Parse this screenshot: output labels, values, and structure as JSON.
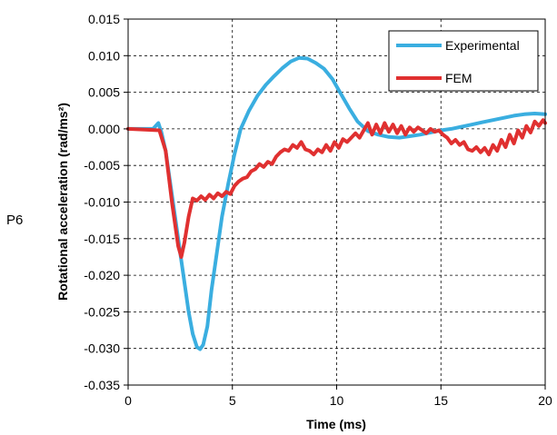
{
  "side_label": "P6",
  "chart_data": {
    "type": "line",
    "xlabel": "Time (ms)",
    "ylabel": "Rotational acceleration (rad/ms²)",
    "xlim": [
      0,
      20
    ],
    "ylim": [
      -0.035,
      0.015
    ],
    "xticks": [
      0,
      5,
      10,
      15,
      20
    ],
    "yticks": [
      -0.035,
      -0.03,
      -0.025,
      -0.02,
      -0.015,
      -0.01,
      -0.005,
      0.0,
      0.005,
      0.01,
      0.015
    ],
    "xtick_labels": [
      "0",
      "5",
      "10",
      "15",
      "20"
    ],
    "ytick_labels": [
      "-0.035",
      "-0.030",
      "-0.025",
      "-0.020",
      "-0.015",
      "-0.010",
      "-0.005",
      "0.000",
      "0.005",
      "0.010",
      "0.015"
    ],
    "grid": true,
    "legend": "top-right",
    "series": [
      {
        "name": "Experimental",
        "color": "#3aaee0",
        "x": [
          0,
          1.2,
          1.45,
          1.6,
          1.8,
          2.0,
          2.3,
          2.6,
          2.9,
          3.1,
          3.3,
          3.45,
          3.6,
          3.8,
          4.0,
          4.2,
          4.5,
          4.8,
          5.1,
          5.4,
          5.8,
          6.2,
          6.6,
          7.0,
          7.4,
          7.8,
          8.2,
          8.6,
          9.0,
          9.4,
          9.8,
          10.2,
          10.6,
          11.0,
          11.5,
          12.0,
          12.5,
          13.0,
          13.5,
          14.0,
          14.5,
          15.0,
          15.5,
          16.0,
          16.5,
          17.0,
          17.5,
          18.0,
          18.5,
          19.0,
          19.5,
          20.0
        ],
        "y": [
          0.0,
          0.0,
          0.0008,
          -0.0005,
          -0.003,
          -0.007,
          -0.013,
          -0.019,
          -0.025,
          -0.028,
          -0.0298,
          -0.0301,
          -0.0295,
          -0.027,
          -0.022,
          -0.018,
          -0.012,
          -0.0075,
          -0.0035,
          0.0,
          0.0025,
          0.0045,
          0.006,
          0.0072,
          0.0083,
          0.0092,
          0.0097,
          0.0096,
          0.009,
          0.0082,
          0.0068,
          0.0048,
          0.0028,
          0.001,
          -0.0003,
          -0.0008,
          -0.0011,
          -0.0012,
          -0.001,
          -0.0008,
          -0.0005,
          -0.0002,
          0.0,
          0.0003,
          0.0006,
          0.0009,
          0.0012,
          0.0015,
          0.0018,
          0.002,
          0.0021,
          0.002
        ]
      },
      {
        "name": "FEM",
        "color": "#e03030",
        "x": [
          0,
          1.5,
          1.8,
          2.1,
          2.4,
          2.55,
          2.7,
          2.9,
          3.1,
          3.3,
          3.5,
          3.7,
          3.9,
          4.1,
          4.3,
          4.5,
          4.7,
          4.9,
          5.1,
          5.3,
          5.5,
          5.7,
          5.9,
          6.1,
          6.3,
          6.5,
          6.7,
          6.9,
          7.1,
          7.3,
          7.5,
          7.7,
          7.9,
          8.1,
          8.3,
          8.5,
          8.7,
          8.9,
          9.1,
          9.3,
          9.5,
          9.7,
          9.9,
          10.1,
          10.3,
          10.5,
          10.7,
          10.9,
          11.1,
          11.3,
          11.5,
          11.7,
          11.9,
          12.1,
          12.3,
          12.5,
          12.7,
          12.9,
          13.1,
          13.3,
          13.5,
          13.7,
          13.9,
          14.1,
          14.3,
          14.5,
          14.7,
          14.9,
          15.1,
          15.3,
          15.5,
          15.7,
          15.9,
          16.1,
          16.3,
          16.5,
          16.7,
          16.9,
          17.1,
          17.3,
          17.5,
          17.7,
          17.9,
          18.1,
          18.3,
          18.5,
          18.7,
          18.9,
          19.1,
          19.3,
          19.5,
          19.7,
          19.9,
          20.0
        ],
        "y": [
          0.0,
          -0.0002,
          -0.003,
          -0.01,
          -0.016,
          -0.0175,
          -0.0155,
          -0.012,
          -0.0095,
          -0.0098,
          -0.0092,
          -0.0097,
          -0.009,
          -0.0095,
          -0.0088,
          -0.0092,
          -0.0086,
          -0.0089,
          -0.0078,
          -0.0072,
          -0.0068,
          -0.0066,
          -0.0058,
          -0.0055,
          -0.0048,
          -0.0052,
          -0.0045,
          -0.0048,
          -0.0038,
          -0.0032,
          -0.0028,
          -0.003,
          -0.0022,
          -0.0026,
          -0.0018,
          -0.0028,
          -0.003,
          -0.0035,
          -0.0028,
          -0.0032,
          -0.0022,
          -0.003,
          -0.0018,
          -0.0026,
          -0.0014,
          -0.0018,
          -0.0012,
          -0.0006,
          -0.0012,
          -0.0002,
          0.0008,
          -0.0008,
          0.0006,
          -0.0006,
          0.0008,
          -0.0004,
          0.0006,
          -0.0006,
          0.0004,
          -0.0008,
          0.0002,
          -0.0004,
          0.0002,
          -0.0002,
          -0.0006,
          0.0,
          -0.0004,
          -0.0002,
          -0.0008,
          -0.0012,
          -0.002,
          -0.0015,
          -0.0022,
          -0.0018,
          -0.0028,
          -0.003,
          -0.0025,
          -0.0032,
          -0.0026,
          -0.0035,
          -0.0022,
          -0.003,
          -0.0015,
          -0.0025,
          -0.0008,
          -0.002,
          -0.0002,
          -0.0012,
          0.0004,
          -0.0005,
          0.001,
          0.0004,
          0.0012,
          0.0008
        ]
      }
    ]
  }
}
